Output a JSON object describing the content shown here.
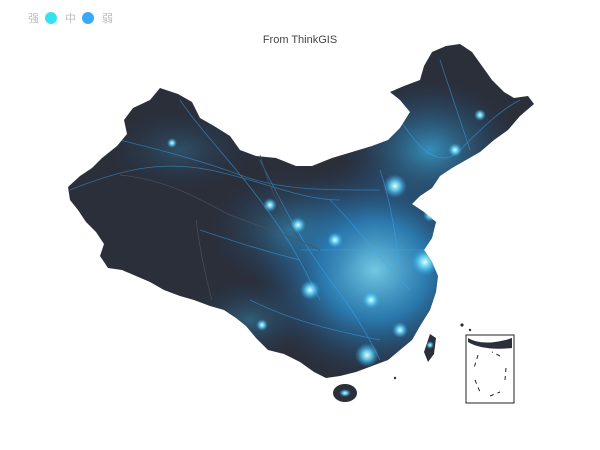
{
  "title": "From ThinkGIS",
  "legend": [
    {
      "label": "强",
      "color": "#36e2f0"
    },
    {
      "label": "中",
      "color": "#3aa9f5"
    },
    {
      "label": "弱",
      "color": "#3a7bd5"
    }
  ],
  "colors": {
    "land": "#2b2f3a",
    "glow_strong": "#b8f6ff",
    "glow_mid": "#36c6f4",
    "glow_weak": "#1e6fb8",
    "border": "#555b66"
  },
  "icons": {
    "legend_dot": "circle",
    "south_sea_inset": "dashed-line-box"
  }
}
